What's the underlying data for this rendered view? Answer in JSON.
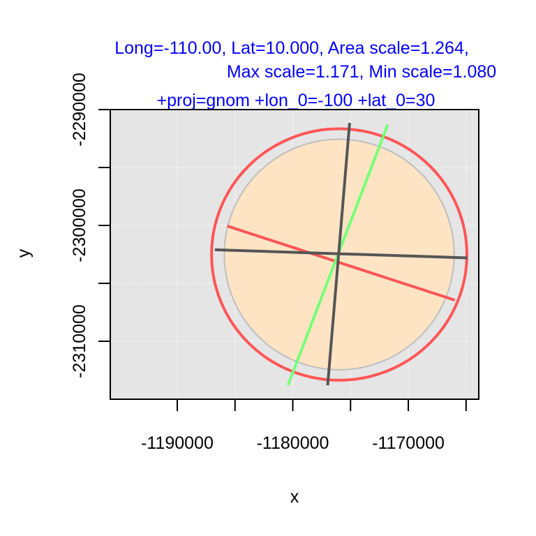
{
  "chart_data": {
    "type": "scatter",
    "title_lines": [
      "Long=-110.00, Lat=10.000, Area scale=1.264,",
      "Max scale=1.171, Min scale=1.080",
      "+proj=gnom +lon_0=-100 +lat_0=30"
    ],
    "xlabel": "x",
    "ylabel": "y",
    "xlim": [
      -1195800,
      -1163900
    ],
    "ylim": [
      -2315000,
      -2290000
    ],
    "x_ticks": [
      -1190000,
      -1185000,
      -1180000,
      -1175000,
      -1170000,
      -1165000
    ],
    "x_tick_labels": [
      {
        "value": -1190000,
        "label": "-1190000"
      },
      {
        "value": -1180000,
        "label": "-1180000"
      },
      {
        "value": -1170000,
        "label": "-1170000"
      }
    ],
    "y_ticks": [
      -2290000,
      -2295000,
      -2300000,
      -2305000,
      -2310000
    ],
    "y_tick_labels": [
      {
        "value": -2290000,
        "label": "-2290000"
      },
      {
        "value": -2300000,
        "label": "-2300000"
      },
      {
        "value": -2310000,
        "label": "-2310000"
      }
    ],
    "grid": true,
    "panel_color": "#e5e5e5",
    "center": {
      "x": -1175980,
      "y": -2302510
    },
    "reference_circle": {
      "radius": 9950,
      "fill": "#ffe4c4",
      "stroke": "#bebebe"
    },
    "tissot_ellipse": {
      "semi_major": 11050,
      "semi_minor": 10850,
      "rotation_deg": 0,
      "stroke": "#ff5555"
    },
    "axes_lines": [
      {
        "name": "max-scale-axis",
        "color": "#ff5555",
        "x1": -1185680,
        "y1": -2300050,
        "x2": -1165970,
        "y2": -2306450
      },
      {
        "name": "min-scale-axis",
        "color": "#77ff77",
        "x1": -1171780,
        "y1": -2291300,
        "x2": -1180420,
        "y2": -2313800
      },
      {
        "name": "parallel-line",
        "color": "#555555",
        "x1": -1186740,
        "y1": -2302100,
        "x2": -1164880,
        "y2": -2302800
      },
      {
        "name": "meridian-line",
        "color": "#555555",
        "x1": -1175080,
        "y1": -2291150,
        "x2": -1176980,
        "y2": -2313800
      }
    ]
  }
}
